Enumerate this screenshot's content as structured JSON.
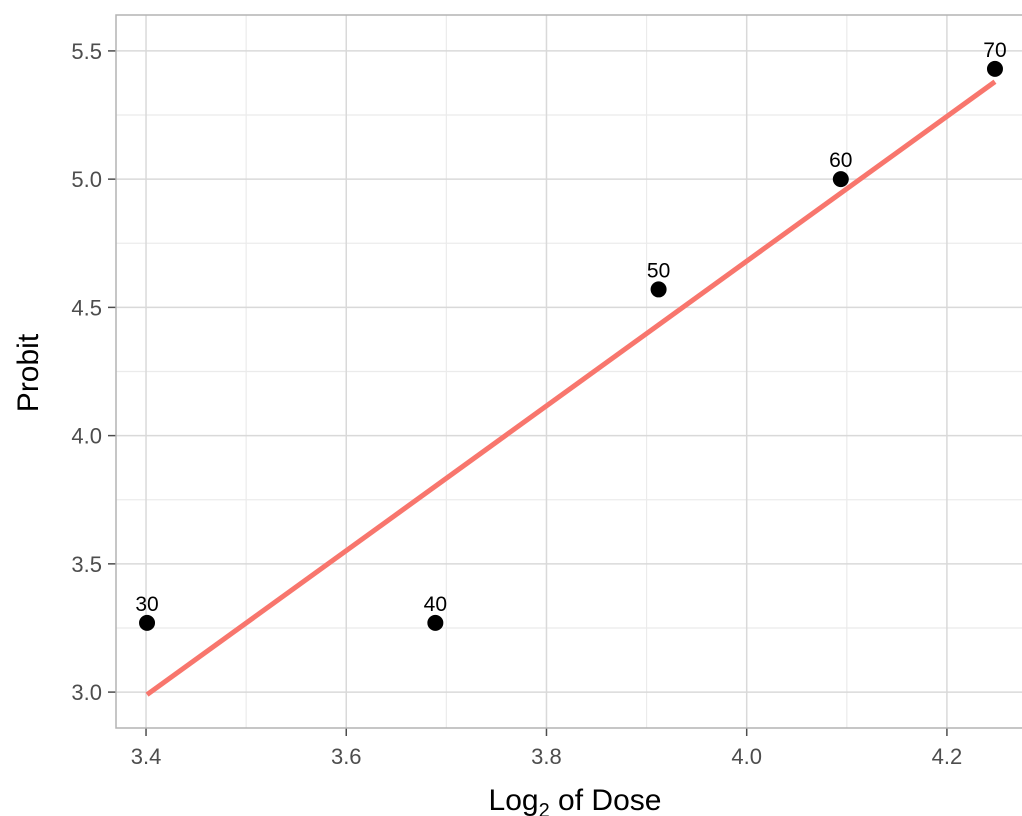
{
  "chart_data": {
    "type": "scatter",
    "title": "",
    "xlabel": "Log",
    "xlabel_subscript": "2",
    "xlabel_suffix": " of Dose",
    "ylabel": "Probit",
    "xlim": [
      3.37,
      4.275
    ],
    "ylim": [
      2.86,
      5.64
    ],
    "x_ticks": [
      3.4,
      3.6,
      3.8,
      4.0,
      4.2
    ],
    "x_tick_labels": [
      "3.4",
      "3.6",
      "3.8",
      "4.0",
      "4.2"
    ],
    "y_ticks": [
      3.0,
      3.5,
      4.0,
      4.5,
      5.0,
      5.5
    ],
    "y_tick_labels": [
      "3.0",
      "3.5",
      "4.0",
      "4.5",
      "5.0",
      "5.5"
    ],
    "grid": true,
    "legend": "none",
    "points": [
      {
        "x": 3.401,
        "y": 3.27,
        "label": "30"
      },
      {
        "x": 3.689,
        "y": 3.27,
        "label": "40"
      },
      {
        "x": 3.912,
        "y": 4.57,
        "label": "50"
      },
      {
        "x": 4.094,
        "y": 5.0,
        "label": "60"
      },
      {
        "x": 4.248,
        "y": 5.43,
        "label": "70"
      }
    ],
    "fit_line": {
      "x": [
        3.401,
        4.248
      ],
      "y": [
        2.99,
        5.38
      ]
    },
    "colors": {
      "points": "#000000",
      "fit_line": "#f8766d",
      "grid_major": "#d9d9d9",
      "grid_minor": "#ebebeb",
      "panel_border": "#b3b3b3"
    }
  }
}
